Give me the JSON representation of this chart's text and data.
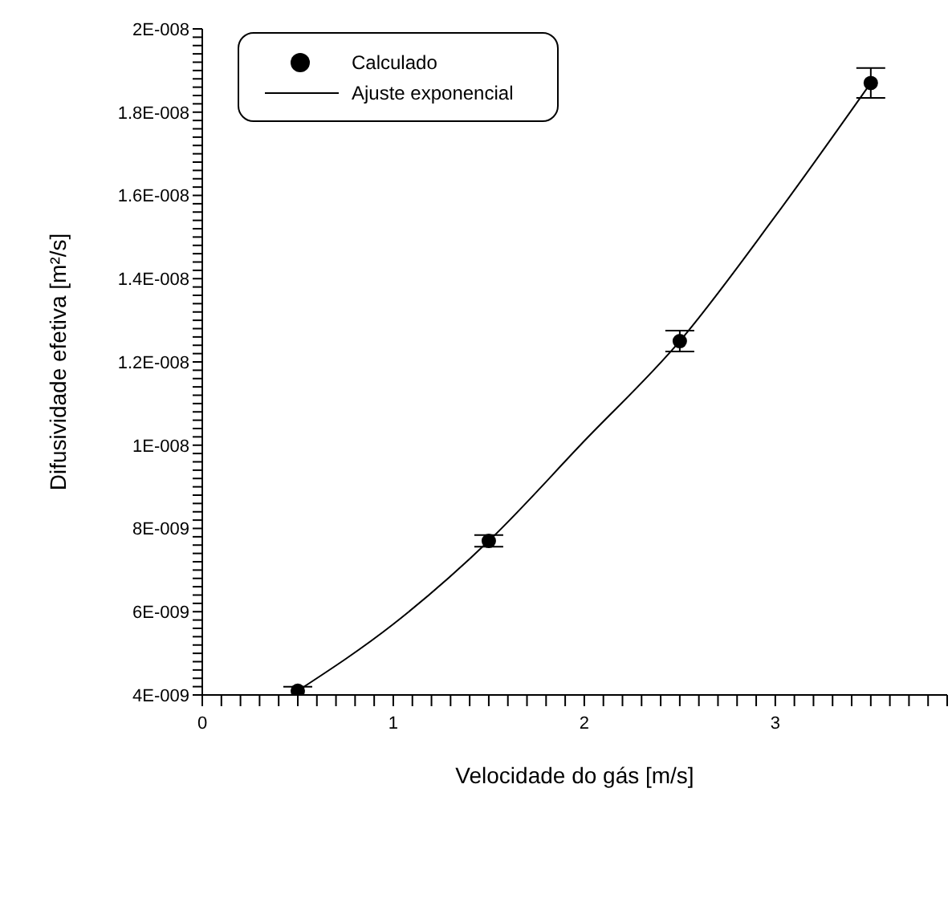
{
  "chart_data": {
    "type": "scatter",
    "xlabel": "Velocidade do gás [m/s]",
    "ylabel": "Difusividade efetiva [m²/s]",
    "xlim": [
      0,
      3.9
    ],
    "ylim": [
      4e-09,
      2e-08
    ],
    "xticks": [
      0,
      {
        "value": 0.1,
        "label": null
      },
      {
        "value": 0.2,
        "label": null
      },
      {
        "value": 0.3,
        "label": null
      },
      {
        "value": 0.4,
        "label": null
      },
      {
        "value": 0.5,
        "label": null
      },
      {
        "value": 0.6,
        "label": null
      },
      {
        "value": 0.7,
        "label": null
      },
      {
        "value": 0.8,
        "label": null
      },
      {
        "value": 0.9,
        "label": null
      },
      1,
      {
        "value": 1.1,
        "label": null
      },
      {
        "value": 1.2,
        "label": null
      },
      {
        "value": 1.3,
        "label": null
      },
      {
        "value": 1.4,
        "label": null
      },
      {
        "value": 1.5,
        "label": null
      },
      {
        "value": 1.6,
        "label": null
      },
      {
        "value": 1.7,
        "label": null
      },
      {
        "value": 1.8,
        "label": null
      },
      {
        "value": 1.9,
        "label": null
      },
      2,
      {
        "value": 2.1,
        "label": null
      },
      {
        "value": 2.2,
        "label": null
      },
      {
        "value": 2.3,
        "label": null
      },
      {
        "value": 2.4,
        "label": null
      },
      {
        "value": 2.5,
        "label": null
      },
      {
        "value": 2.6,
        "label": null
      },
      {
        "value": 2.7,
        "label": null
      },
      {
        "value": 2.8,
        "label": null
      },
      {
        "value": 2.9,
        "label": null
      },
      3,
      {
        "value": 3.1,
        "label": null
      },
      {
        "value": 3.2,
        "label": null
      },
      {
        "value": 3.3,
        "label": null
      },
      {
        "value": 3.4,
        "label": null
      },
      {
        "value": 3.5,
        "label": null
      },
      {
        "value": 3.6,
        "label": null
      },
      {
        "value": 3.7,
        "label": null
      },
      {
        "value": 3.8,
        "label": null
      },
      {
        "value": 3.9,
        "label": null
      }
    ],
    "yticks": [
      {
        "value": 4e-09,
        "label": "4E-009"
      },
      {
        "value": 4.2e-09,
        "label": null
      },
      {
        "value": 4.4e-09,
        "label": null
      },
      {
        "value": 4.6e-09,
        "label": null
      },
      {
        "value": 4.8e-09,
        "label": null
      },
      {
        "value": 5e-09,
        "label": null
      },
      {
        "value": 5.2e-09,
        "label": null
      },
      {
        "value": 5.4e-09,
        "label": null
      },
      {
        "value": 5.6e-09,
        "label": null
      },
      {
        "value": 5.8e-09,
        "label": null
      },
      {
        "value": 6e-09,
        "label": "6E-009"
      },
      {
        "value": 6.2e-09,
        "label": null
      },
      {
        "value": 6.4e-09,
        "label": null
      },
      {
        "value": 6.6e-09,
        "label": null
      },
      {
        "value": 6.8e-09,
        "label": null
      },
      {
        "value": 7e-09,
        "label": null
      },
      {
        "value": 7.2e-09,
        "label": null
      },
      {
        "value": 7.4e-09,
        "label": null
      },
      {
        "value": 7.6e-09,
        "label": null
      },
      {
        "value": 7.8e-09,
        "label": null
      },
      {
        "value": 8e-09,
        "label": "8E-009"
      },
      {
        "value": 8.2e-09,
        "label": null
      },
      {
        "value": 8.4e-09,
        "label": null
      },
      {
        "value": 8.6e-09,
        "label": null
      },
      {
        "value": 8.8e-09,
        "label": null
      },
      {
        "value": 9e-09,
        "label": null
      },
      {
        "value": 9.2e-09,
        "label": null
      },
      {
        "value": 9.4e-09,
        "label": null
      },
      {
        "value": 9.6e-09,
        "label": null
      },
      {
        "value": 9.8e-09,
        "label": null
      },
      {
        "value": 1e-08,
        "label": "1E-008"
      },
      {
        "value": 1.02e-08,
        "label": null
      },
      {
        "value": 1.04e-08,
        "label": null
      },
      {
        "value": 1.06e-08,
        "label": null
      },
      {
        "value": 1.08e-08,
        "label": null
      },
      {
        "value": 1.1e-08,
        "label": null
      },
      {
        "value": 1.12e-08,
        "label": null
      },
      {
        "value": 1.14e-08,
        "label": null
      },
      {
        "value": 1.16e-08,
        "label": null
      },
      {
        "value": 1.18e-08,
        "label": null
      },
      {
        "value": 1.2e-08,
        "label": "1.2E-008"
      },
      {
        "value": 1.22e-08,
        "label": null
      },
      {
        "value": 1.24e-08,
        "label": null
      },
      {
        "value": 1.26e-08,
        "label": null
      },
      {
        "value": 1.28e-08,
        "label": null
      },
      {
        "value": 1.3e-08,
        "label": null
      },
      {
        "value": 1.32e-08,
        "label": null
      },
      {
        "value": 1.34e-08,
        "label": null
      },
      {
        "value": 1.36e-08,
        "label": null
      },
      {
        "value": 1.38e-08,
        "label": null
      },
      {
        "value": 1.4e-08,
        "label": "1.4E-008"
      },
      {
        "value": 1.42e-08,
        "label": null
      },
      {
        "value": 1.44e-08,
        "label": null
      },
      {
        "value": 1.46e-08,
        "label": null
      },
      {
        "value": 1.48e-08,
        "label": null
      },
      {
        "value": 1.5e-08,
        "label": null
      },
      {
        "value": 1.52e-08,
        "label": null
      },
      {
        "value": 1.54e-08,
        "label": null
      },
      {
        "value": 1.56e-08,
        "label": null
      },
      {
        "value": 1.58e-08,
        "label": null
      },
      {
        "value": 1.6e-08,
        "label": "1.6E-008"
      },
      {
        "value": 1.62e-08,
        "label": null
      },
      {
        "value": 1.64e-08,
        "label": null
      },
      {
        "value": 1.66e-08,
        "label": null
      },
      {
        "value": 1.68e-08,
        "label": null
      },
      {
        "value": 1.7e-08,
        "label": null
      },
      {
        "value": 1.72e-08,
        "label": null
      },
      {
        "value": 1.74e-08,
        "label": null
      },
      {
        "value": 1.76e-08,
        "label": null
      },
      {
        "value": 1.78e-08,
        "label": null
      },
      {
        "value": 1.8e-08,
        "label": "1.8E-008"
      },
      {
        "value": 1.82e-08,
        "label": null
      },
      {
        "value": 1.84e-08,
        "label": null
      },
      {
        "value": 1.86e-08,
        "label": null
      },
      {
        "value": 1.88e-08,
        "label": null
      },
      {
        "value": 1.9e-08,
        "label": null
      },
      {
        "value": 1.92e-08,
        "label": null
      },
      {
        "value": 1.94e-08,
        "label": null
      },
      {
        "value": 1.96e-08,
        "label": null
      },
      {
        "value": 1.98e-08,
        "label": null
      },
      {
        "value": 2e-08,
        "label": "2E-008"
      }
    ],
    "legend": "top left",
    "series": [
      {
        "name": "Calculado",
        "color": "#000000",
        "x": [
          0.5,
          1.5,
          2.5,
          3.5
        ],
        "values": [
          4.1e-09,
          7.7e-09,
          1.25e-08,
          1.87e-08
        ],
        "errors": [
          1e-10,
          1.4e-10,
          2.5e-10,
          3.6e-10
        ]
      },
      {
        "name": "Ajuste exponencial",
        "type": "line",
        "color": "#000000",
        "x": [
          0.5,
          1,
          1.5,
          2,
          2.5,
          3,
          3.5
        ],
        "values": [
          4.1e-09,
          5.7e-09,
          7.7e-09,
          1.01e-08,
          1.25e-08,
          1.55e-08,
          1.87e-08
        ]
      }
    ]
  }
}
